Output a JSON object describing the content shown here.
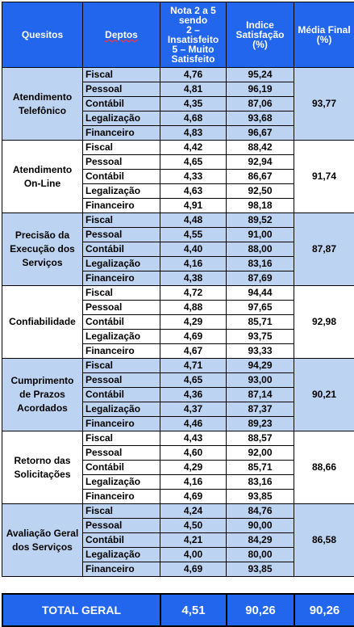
{
  "header": {
    "quesitos": "Quesitos",
    "deptos": "Deptos",
    "nota": [
      "Nota 2 a 5",
      "sendo",
      "2 –",
      "Insatisfeito",
      "5 – Muito",
      "Satisfeito"
    ],
    "indice": [
      "Indice",
      "Satisfação",
      "(%)"
    ],
    "media": [
      "Média Final",
      "(%)"
    ]
  },
  "groups": [
    {
      "category": [
        "Atendimento",
        "Telefônico"
      ],
      "shade": "light",
      "media": "93,77",
      "rows": [
        {
          "dept": "Fiscal",
          "nota": "4,76",
          "indice": "95,24"
        },
        {
          "dept": "Pessoal",
          "nota": "4,81",
          "indice": "96,19"
        },
        {
          "dept": "Contábil",
          "nota": "4,35",
          "indice": "87,06"
        },
        {
          "dept": "Legalização",
          "nota": "4,68",
          "indice": "93,68"
        },
        {
          "dept": "Financeiro",
          "nota": "4,83",
          "indice": "96,67"
        }
      ]
    },
    {
      "category": [
        "Atendimento",
        "On-Line"
      ],
      "shade": "white",
      "media": "91,74",
      "rows": [
        {
          "dept": "Fiscal",
          "nota": "4,42",
          "indice": "88,42"
        },
        {
          "dept": "Pessoal",
          "nota": "4,65",
          "indice": "92,94"
        },
        {
          "dept": "Contábil",
          "nota": "4,33",
          "indice": "86,67"
        },
        {
          "dept": "Legalização",
          "nota": "4,63",
          "indice": "92,50"
        },
        {
          "dept": "Financeiro",
          "nota": "4,91",
          "indice": "98,18"
        }
      ]
    },
    {
      "category": [
        "Precisão da",
        "Execução dos",
        "Serviços"
      ],
      "shade": "light",
      "media": "87,87",
      "rows": [
        {
          "dept": "Fiscal",
          "nota": "4,48",
          "indice": "89,52"
        },
        {
          "dept": "Pessoal",
          "nota": "4,55",
          "indice": "91,00"
        },
        {
          "dept": "Contábil",
          "nota": "4,40",
          "indice": "88,00"
        },
        {
          "dept": "Legalização",
          "nota": "4,16",
          "indice": "83,16"
        },
        {
          "dept": "Financeiro",
          "nota": "4,38",
          "indice": "87,69"
        }
      ]
    },
    {
      "category": [
        "Confiabilidade"
      ],
      "shade": "white",
      "media": "92,98",
      "rows": [
        {
          "dept": "Fiscal",
          "nota": "4,72",
          "indice": "94,44"
        },
        {
          "dept": "Pessoal",
          "nota": "4,88",
          "indice": "97,65"
        },
        {
          "dept": "Contábil",
          "nota": "4,29",
          "indice": "85,71"
        },
        {
          "dept": "Legalização",
          "nota": "4,69",
          "indice": "93,75"
        },
        {
          "dept": "Financeiro",
          "nota": "4,67",
          "indice": "93,33"
        }
      ]
    },
    {
      "category": [
        "Cumprimento",
        "de Prazos",
        "Acordados"
      ],
      "shade": "light",
      "media": "90,21",
      "rows": [
        {
          "dept": "Fiscal",
          "nota": "4,71",
          "indice": "94,29"
        },
        {
          "dept": "Pessoal",
          "nota": "4,65",
          "indice": "93,00"
        },
        {
          "dept": "Contábil",
          "nota": "4,36",
          "indice": "87,14"
        },
        {
          "dept": "Legalização",
          "nota": "4,37",
          "indice": "87,37"
        },
        {
          "dept": "Financeiro",
          "nota": "4,46",
          "indice": "89,23"
        }
      ]
    },
    {
      "category": [
        "Retorno das",
        "Solicitações"
      ],
      "shade": "white",
      "media": "88,66",
      "rows": [
        {
          "dept": "Fiscal",
          "nota": "4,43",
          "indice": "88,57"
        },
        {
          "dept": "Pessoal",
          "nota": "4,60",
          "indice": "92,00"
        },
        {
          "dept": "Contábil",
          "nota": "4,29",
          "indice": "85,71"
        },
        {
          "dept": "Legalização",
          "nota": "4,16",
          "indice": "83,16"
        },
        {
          "dept": "Financeiro",
          "nota": "4,69",
          "indice": "93,85"
        }
      ]
    },
    {
      "category": [
        "Avaliação Geral",
        "dos Serviços"
      ],
      "shade": "light",
      "media": "86,58",
      "rows": [
        {
          "dept": "Fiscal",
          "nota": "4,24",
          "indice": "84,76"
        },
        {
          "dept": "Pessoal",
          "nota": "4,50",
          "indice": "90,00"
        },
        {
          "dept": "Contábil",
          "nota": "4,21",
          "indice": "84,29"
        },
        {
          "dept": "Legalização",
          "nota": "4,00",
          "indice": "80,00"
        },
        {
          "dept": "Financeiro",
          "nota": "4,69",
          "indice": "93,85"
        }
      ]
    }
  ],
  "total": {
    "label": "TOTAL GERAL",
    "nota": "4,51",
    "indice": "90,26",
    "media": "90,26"
  }
}
